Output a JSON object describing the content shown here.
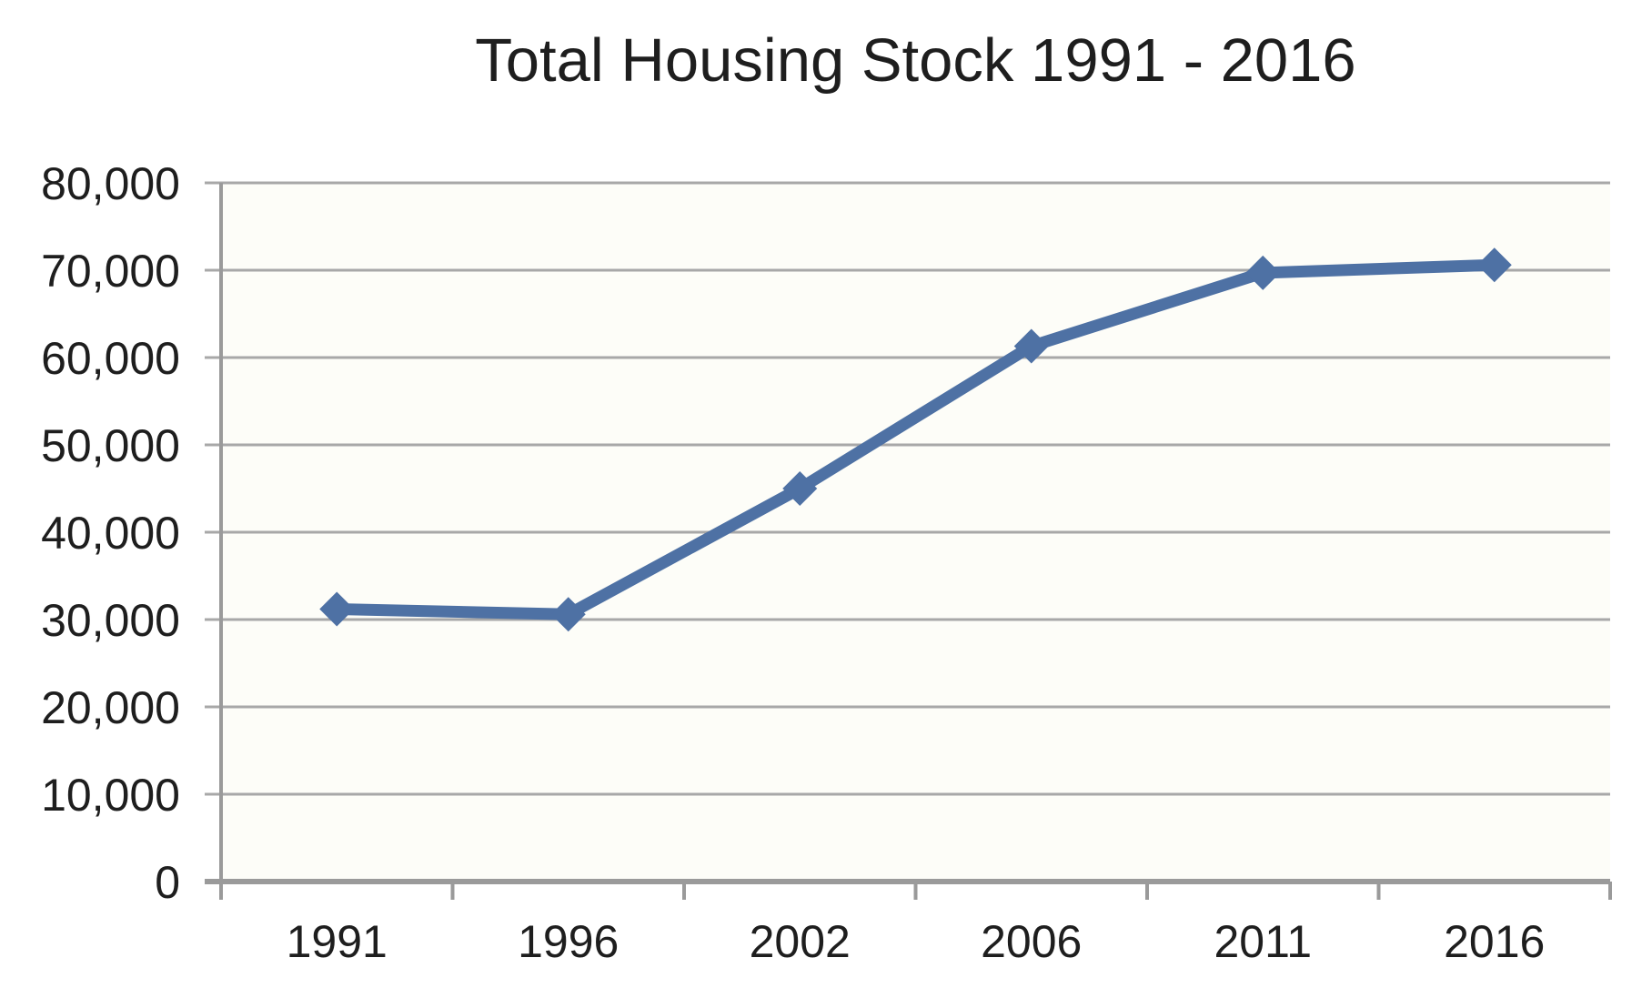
{
  "chart_data": {
    "type": "line",
    "title": "Total Housing Stock 1991 - 2016",
    "categories": [
      "1991",
      "1996",
      "2002",
      "2006",
      "2011",
      "2016"
    ],
    "series": [
      {
        "name": "Total Housing Stock",
        "values": [
          31200,
          30600,
          45000,
          61300,
          69700,
          70600
        ]
      }
    ],
    "xlabel": "",
    "ylabel": "",
    "ylim": [
      0,
      80000
    ],
    "y_tick_interval": 10000,
    "y_tick_labels": [
      "0",
      "10,000",
      "20,000",
      "30,000",
      "40,000",
      "50,000",
      "60,000",
      "70,000",
      "80,000"
    ],
    "grid": true,
    "legend": false,
    "marker_shape": "diamond",
    "colors": {
      "line": "#4e71a4",
      "marker": "#4e71a4",
      "gridline": "#a8a8a8",
      "axis": "#9a9a9a",
      "text": "#1e1e1e",
      "plot_background": "#fdfdf8",
      "page_background": "#ffffff"
    }
  }
}
